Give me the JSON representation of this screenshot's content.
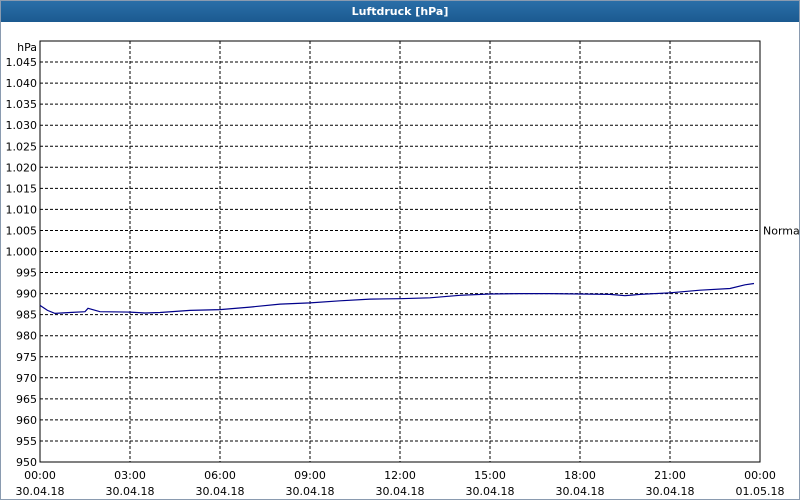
{
  "chart_data": {
    "type": "line",
    "title": "Luftdruck [hPa]",
    "y_label": "hPa",
    "series": [
      {
        "name": "Luftdruck",
        "color": "#00008b",
        "x": [
          0,
          0.25,
          0.5,
          1,
          1.5,
          1.6,
          2,
          3,
          3.5,
          4,
          5,
          6,
          7,
          8,
          9,
          10,
          11,
          12,
          13,
          14,
          15,
          16,
          17,
          18,
          19,
          19.5,
          20,
          21,
          22,
          23,
          23.5,
          23.8
        ],
        "values": [
          987.2,
          986,
          985.3,
          985.5,
          985.7,
          986.5,
          985.7,
          985.6,
          985.4,
          985.5,
          986,
          986.2,
          986.8,
          987.5,
          987.8,
          988.3,
          988.7,
          988.8,
          989,
          989.6,
          989.9,
          990,
          990,
          989.9,
          989.8,
          989.5,
          989.8,
          990.2,
          990.8,
          991.2,
          992.1,
          992.4
        ]
      }
    ],
    "xlim": [
      0,
      24
    ],
    "xticks": [
      {
        "value": 0,
        "label": "00:00"
      },
      {
        "value": 3,
        "label": "03:00"
      },
      {
        "value": 6,
        "label": "06:00"
      },
      {
        "value": 9,
        "label": "09:00"
      },
      {
        "value": 12,
        "label": "12:00"
      },
      {
        "value": 15,
        "label": "15:00"
      },
      {
        "value": 18,
        "label": "18:00"
      },
      {
        "value": 21,
        "label": "21:00"
      },
      {
        "value": 24,
        "label": "00:00"
      }
    ],
    "xtick_dates": [
      "30.04.18",
      "30.04.18",
      "30.04.18",
      "30.04.18",
      "30.04.18",
      "30.04.18",
      "30.04.18",
      "30.04.18",
      "01.05.18"
    ],
    "ylim": [
      950,
      1050
    ],
    "yticks": [
      950,
      955,
      960,
      965,
      970,
      975,
      980,
      985,
      990,
      995,
      {
        "value": 1000,
        "label": "1.000"
      },
      {
        "value": 1005,
        "label": "1.005"
      },
      {
        "value": 1010,
        "label": "1.010"
      },
      {
        "value": 1015,
        "label": "1.015"
      },
      {
        "value": 1020,
        "label": "1.020"
      },
      {
        "value": 1025,
        "label": "1.025"
      },
      {
        "value": 1030,
        "label": "1.030"
      },
      {
        "value": 1035,
        "label": "1.035"
      },
      {
        "value": 1040,
        "label": "1.040"
      },
      {
        "value": 1045,
        "label": "1.045"
      }
    ],
    "annotation": {
      "text": "Normal",
      "value": 1005
    },
    "grid": true
  }
}
